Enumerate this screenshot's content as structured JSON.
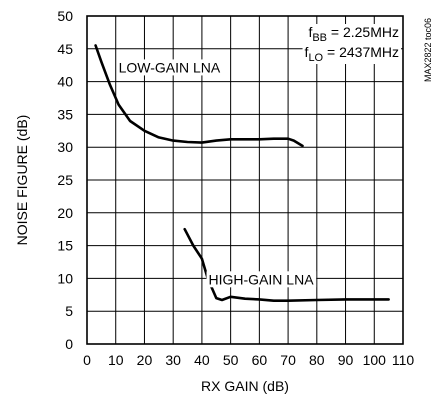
{
  "chart_data": {
    "type": "line",
    "xlabel": "RX GAIN (dB)",
    "ylabel": "NOISE FIGURE (dB)",
    "xlim": [
      0,
      110
    ],
    "ylim": [
      0,
      50
    ],
    "x_ticks": [
      0,
      10,
      20,
      30,
      40,
      50,
      60,
      70,
      80,
      90,
      100,
      110
    ],
    "y_ticks": [
      0,
      5,
      10,
      15,
      20,
      25,
      30,
      35,
      40,
      45,
      50
    ],
    "grid": true,
    "series": [
      {
        "name": "LOW-GAIN LNA",
        "x": [
          3,
          5,
          8,
          11,
          15,
          20,
          25,
          30,
          35,
          40,
          45,
          50,
          55,
          60,
          65,
          70,
          72,
          75
        ],
        "y": [
          45.5,
          43,
          39.5,
          36.5,
          34,
          32.5,
          31.5,
          31,
          30.8,
          30.7,
          31,
          31.2,
          31.2,
          31.2,
          31.3,
          31.3,
          31,
          30.2
        ]
      },
      {
        "name": "HIGH-GAIN LNA",
        "x": [
          34,
          37,
          40,
          42,
          45,
          47,
          50,
          55,
          60,
          65,
          70,
          80,
          90,
          100,
          105
        ],
        "y": [
          17.5,
          15,
          13,
          10,
          7,
          6.7,
          7.2,
          6.9,
          6.8,
          6.6,
          6.6,
          6.7,
          6.8,
          6.8,
          6.8
        ]
      }
    ],
    "annotations": [
      {
        "id": "fbb",
        "main": "f",
        "sub": "BB",
        "rest": " = 2.25MHz"
      },
      {
        "id": "flo",
        "main": "f",
        "sub": "LO",
        "rest": " = 2437MHz"
      }
    ],
    "side_label": "MAX2822 toc06"
  }
}
